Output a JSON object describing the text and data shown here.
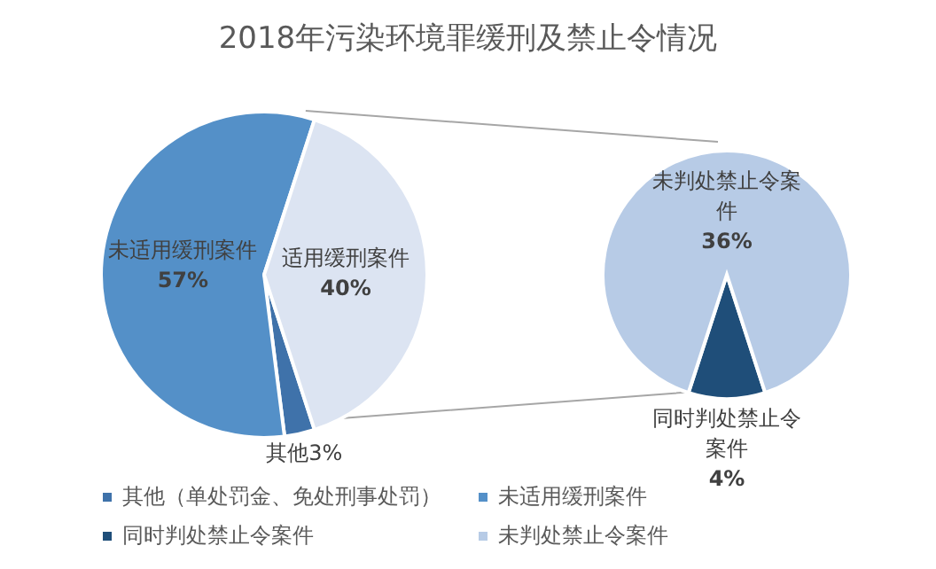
{
  "chart_data": [
    {
      "type": "pie",
      "title": "2018年污染环境罪缓刑及禁止令情况",
      "categories": [
        "其他（单处罚金、免处刑事处罚）",
        "未适用缓刑案件",
        null
      ],
      "values": [
        3,
        57,
        40
      ],
      "colors": [
        "#3f72aa",
        "#5490c8",
        "#dce4f2"
      ],
      "value_labels": [
        "其他3%",
        "未适用缓刑案件 57%",
        "适用缓刑案件 40%"
      ],
      "legend": "bottom"
    },
    {
      "type": "pie",
      "categories": [
        "同时判处禁止令案件",
        "未判处禁止令案件"
      ],
      "values": [
        4,
        36
      ],
      "colors": [
        "#1f4e79",
        "#b7cbe6"
      ],
      "value_labels": [
        "同时判处禁止令案件 4%",
        "未判处禁止令案件 36%"
      ],
      "legend": "bottom"
    }
  ]
}
